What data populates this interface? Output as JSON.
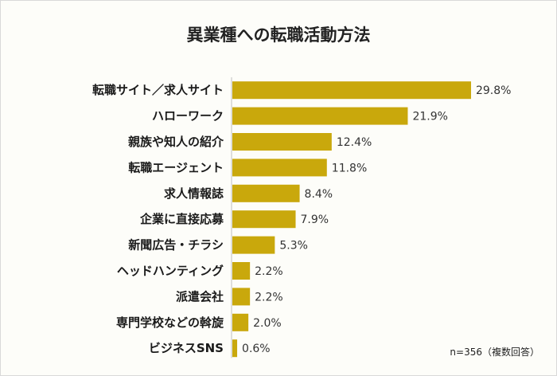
{
  "chart_data": {
    "type": "bar",
    "orientation": "horizontal",
    "title": "異業種への転職活動方法",
    "categories": [
      "転職サイト／求人サイト",
      "ハローワーク",
      "親族や知人の紹介",
      "転職エージェント",
      "求人情報誌",
      "企業に直接応募",
      "新聞広告・チラシ",
      "ヘッドハンティング",
      "派遣会社",
      "専門学校などの斡旋",
      "ビジネスSNS"
    ],
    "values": [
      29.8,
      21.9,
      12.4,
      11.8,
      8.4,
      7.9,
      5.3,
      2.2,
      2.2,
      2.0,
      0.6
    ],
    "value_labels": [
      "29.8%",
      "21.9%",
      "12.4%",
      "11.8%",
      "8.4%",
      "7.9%",
      "5.3%",
      "2.2%",
      "2.2%",
      "2.0%",
      "0.6%"
    ],
    "unit": "%",
    "xlim": [
      0,
      30
    ],
    "bar_color": "#c9a80c",
    "note": "n=356（複数回答）"
  }
}
